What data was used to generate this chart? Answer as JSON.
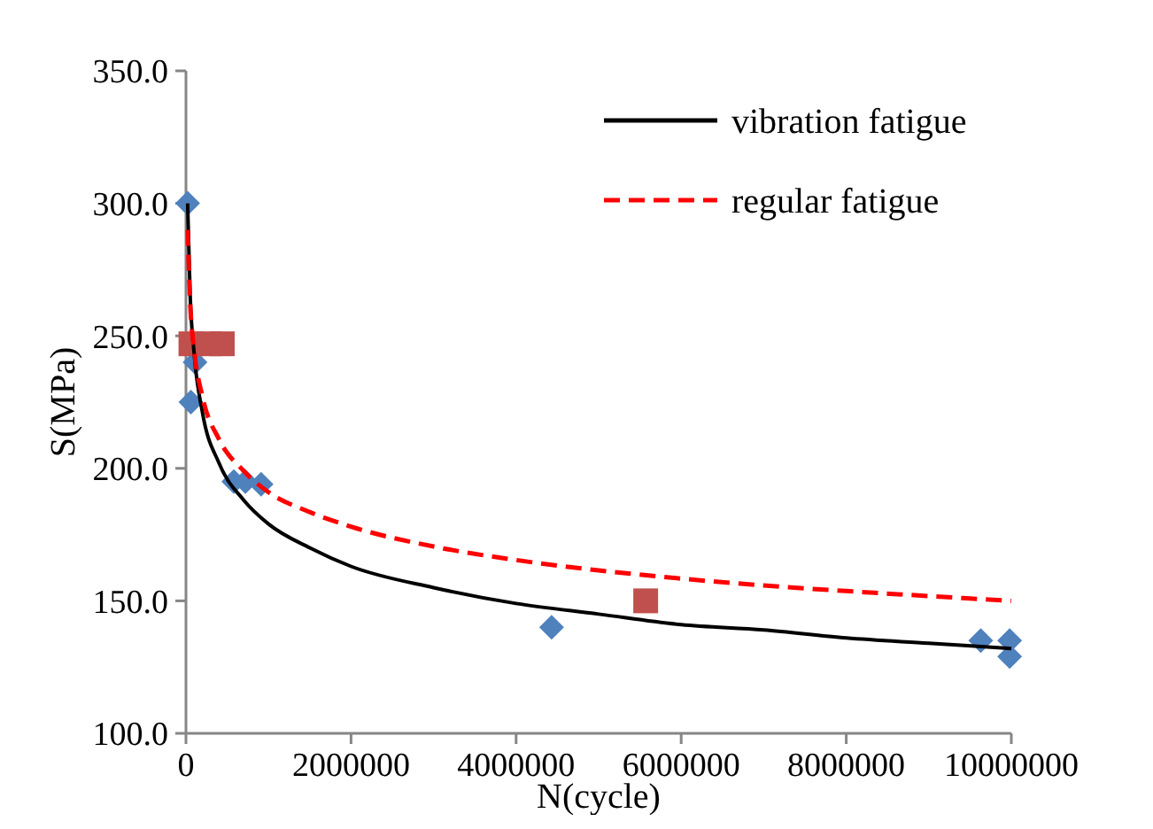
{
  "chart_data": {
    "type": "scatter",
    "xlabel": "N(cycle)",
    "ylabel": "S(MPa)",
    "xlim": [
      0,
      10000000
    ],
    "xticks": [
      0,
      2000000,
      4000000,
      6000000,
      8000000,
      10000000
    ],
    "ylim": [
      100,
      350
    ],
    "yticks": [
      {
        "value": 100,
        "label": "100.0"
      },
      {
        "value": 150,
        "label": "150.0"
      },
      {
        "value": 200,
        "label": "200.0"
      },
      {
        "value": 250,
        "label": "250.0"
      },
      {
        "value": 300,
        "label": "300.0"
      },
      {
        "value": 350,
        "label": "350.0"
      }
    ],
    "grid": false,
    "legend": "top right",
    "series": [
      {
        "marker": "diamond",
        "color": "#4f81bd",
        "x": [
          20000,
          60000,
          110000,
          580000,
          720000,
          910000,
          4430000,
          9630000,
          9980000,
          9980000
        ],
        "values": [
          300,
          225,
          240,
          195,
          195,
          194,
          140,
          135,
          135,
          129
        ]
      },
      {
        "marker": "square",
        "color": "#c0504d",
        "x": [
          60000,
          280000,
          440000,
          5570000
        ],
        "values": [
          247,
          247,
          247,
          150
        ]
      },
      {
        "type": "line",
        "name": "vibration fatigue",
        "color": "#000000",
        "line_style": "solid",
        "marker": "none",
        "x": [
          20000,
          50000,
          100000,
          200000,
          400000,
          700000,
          1000000,
          1500000,
          2000000,
          3000000,
          4000000,
          5000000,
          6000000,
          7000000,
          8000000,
          9000000,
          10000000
        ],
        "values": [
          300,
          266,
          243,
          221,
          202,
          188,
          179,
          170,
          163,
          155,
          149,
          145,
          141,
          139,
          136,
          134,
          132
        ]
      },
      {
        "type": "line",
        "name": "regular fatigue",
        "color": "#ff0000",
        "line_style": "dashed",
        "marker": "none",
        "x": [
          20000,
          50000,
          100000,
          200000,
          400000,
          700000,
          1000000,
          1500000,
          2000000,
          3000000,
          4000000,
          5000000,
          6000000,
          7000000,
          8000000,
          9000000,
          10000000
        ],
        "values": [
          290,
          263,
          244.5,
          227,
          211,
          199,
          191,
          183.5,
          178,
          170.5,
          165.4,
          161.5,
          158.4,
          155.8,
          153.7,
          151.8,
          150
        ]
      }
    ]
  }
}
